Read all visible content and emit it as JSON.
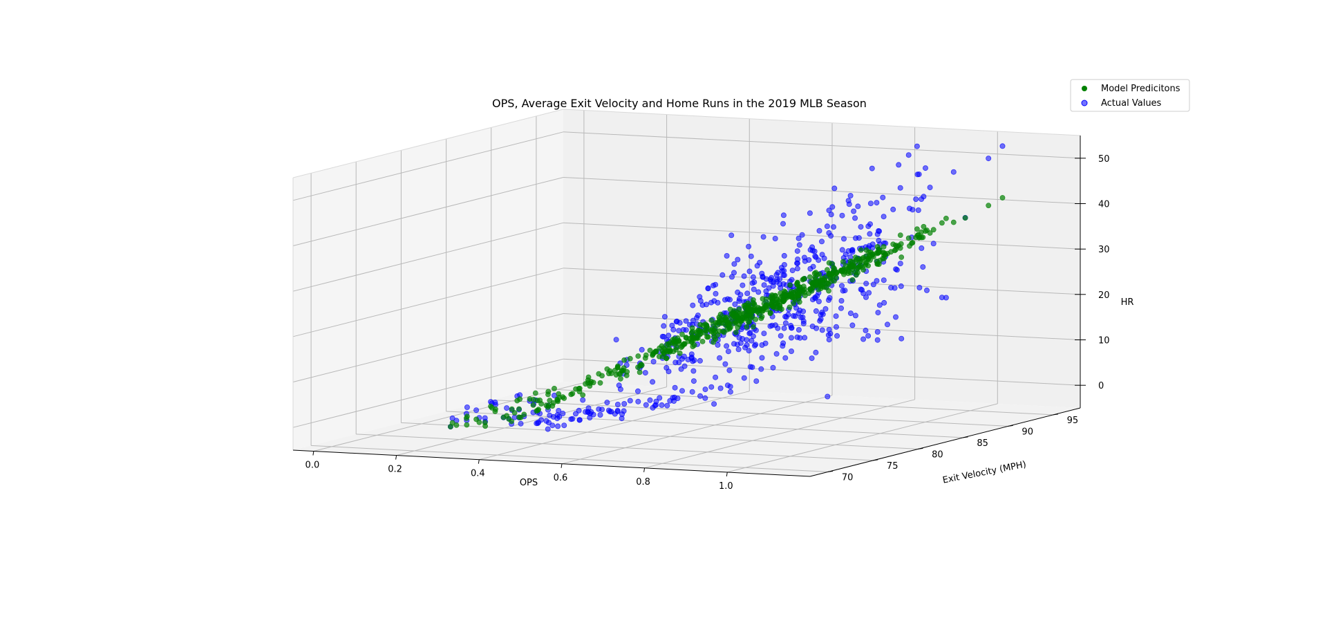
{
  "chart_data": {
    "type": "scatter3d",
    "title": "OPS, Average Exit Velocity and Home Runs in the 2019 MLB Season",
    "xlabel": "OPS",
    "ylabel": "Exit Velocity (MPH)",
    "zlabel": "HR",
    "x_ticks": [
      "0.0",
      "0.2",
      "0.4",
      "0.6",
      "0.8",
      "1.0"
    ],
    "y_ticks": [
      "70",
      "75",
      "80",
      "85",
      "90",
      "95"
    ],
    "z_ticks": [
      "0",
      "10",
      "20",
      "30",
      "40",
      "50"
    ],
    "xlim": [
      -0.05,
      1.2
    ],
    "ylim": [
      68,
      98
    ],
    "zlim": [
      -5,
      55
    ],
    "grid": true,
    "legend_position": "top-right",
    "series": [
      {
        "name": "Model Predicitons",
        "color": "#008000",
        "opacity": 0.7,
        "approx_points": 620,
        "description_of_fit": "linear model; HR rises steeply with OPS and exit velocity"
      },
      {
        "name": "Actual Values",
        "color": "#0000ff",
        "opacity": 0.55,
        "approx_points": 620,
        "hr_range": [
          0,
          53
        ]
      }
    ]
  }
}
